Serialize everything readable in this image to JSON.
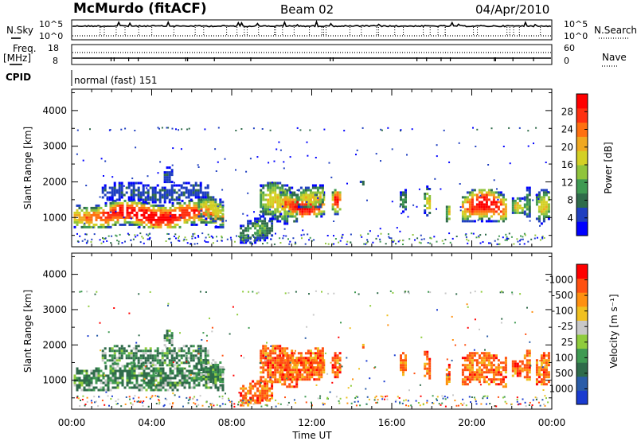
{
  "header": {
    "station": "McMurdo (fitACF)",
    "beam": "Beam 02",
    "date": "04/Apr/2010"
  },
  "top_panels": {
    "nsky_label": "N.Sky",
    "nsearch_label": "N.Search",
    "nsky_ticks": [
      "10^5",
      "10^0"
    ],
    "freq_label_1": "Freq.",
    "freq_label_2": "[MHz]",
    "freq_ticks": [
      "18",
      "8"
    ],
    "nave_label": "Nave",
    "nave_ticks": [
      "60",
      "0"
    ],
    "cpid_label": "CPID",
    "cpid_value": "normal (fast) 151"
  },
  "chart_data": [
    {
      "type": "heatmap",
      "title": "",
      "xlabel": "",
      "ylabel": "Slant Range [km]",
      "yticks": [
        1000,
        2000,
        3000,
        4000
      ],
      "ylim": [
        180,
        4600
      ],
      "xlim": [
        0,
        24
      ],
      "colorbar": {
        "label": "Power [dB]",
        "ticks": [
          "4",
          "8",
          "12",
          "16",
          "20",
          "24",
          "28"
        ],
        "colors": [
          "#0000ff",
          "#1f3fc0",
          "#2f6b4a",
          "#3f9a52",
          "#90c43c",
          "#d4d025",
          "#f0a820",
          "#ff7010",
          "#ff3010",
          "#ff0000"
        ]
      }
    },
    {
      "type": "heatmap",
      "title": "",
      "xlabel": "Time UT",
      "ylabel": "Slant Range [km]",
      "yticks": [
        1000,
        2000,
        3000,
        4000
      ],
      "ylim": [
        180,
        4600
      ],
      "xlim": [
        0,
        24
      ],
      "xticks": [
        "00:00",
        "04:00",
        "08:00",
        "12:00",
        "16:00",
        "20:00",
        "00:00"
      ],
      "colorbar": {
        "label": "Velocity [m s⁻¹]",
        "ticks": [
          "1000",
          "500",
          "100",
          "25",
          "-25",
          "-100",
          "-500",
          "-1000"
        ],
        "colors": [
          "#1a3bd0",
          "#2a5ca8",
          "#2f6b4a",
          "#3f9a52",
          "#8fcc3c",
          "#c8c8c8",
          "#f0c020",
          "#ff9010",
          "#ff5010",
          "#ff0000"
        ]
      }
    }
  ]
}
